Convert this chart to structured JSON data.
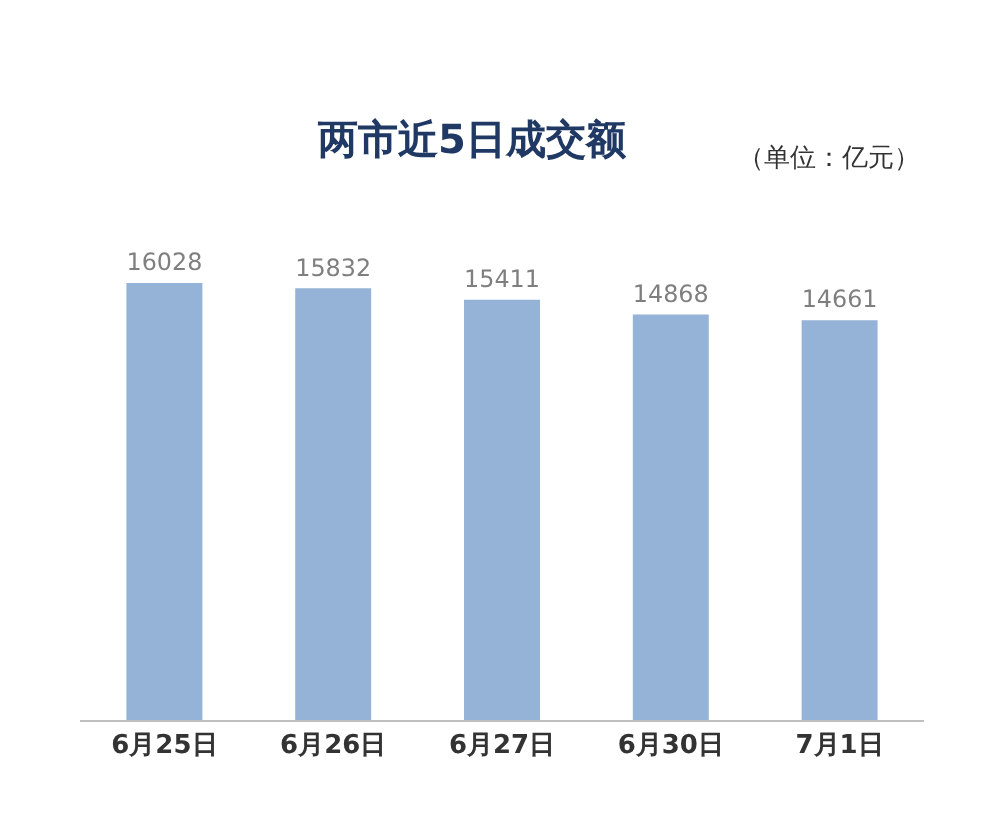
{
  "chart_data": {
    "type": "bar",
    "title": "两市近5日成交额",
    "annotations": [
      "（单位：亿元）"
    ],
    "categories": [
      "6月25日",
      "6月26日",
      "6月27日",
      "6月30日",
      "7月1日"
    ],
    "values": [
      16028,
      15832,
      15411,
      14868,
      14661
    ],
    "color": "#95b3d7",
    "data_labels": true
  }
}
